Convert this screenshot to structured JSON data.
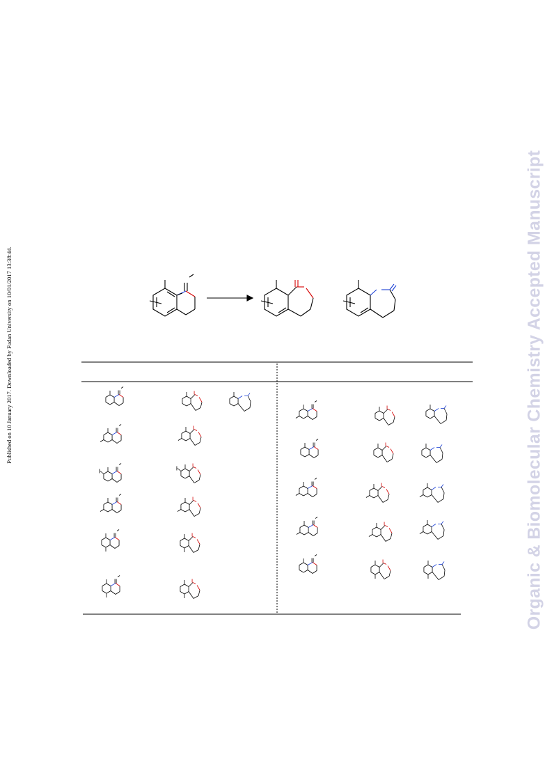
{
  "side_notice": "Published on 10 January 2017. Downloaded by Fudan University on 10/01/2017 13:38:44.",
  "watermark": "Organic & Biomolecular Chemistry Accepted Manuscript",
  "colors": {
    "bond": "#000000",
    "oxygen": "#d40000",
    "nitrogen": "#1a3fd6",
    "watermark": "#d3d3e6"
  },
  "scheme": {
    "arrow": "reaction-arrow",
    "structures": [
      "starting-material",
      "product-lactone",
      "product-lactam"
    ]
  },
  "table": {
    "left_entries": 6,
    "right_entries": 5,
    "columns_per_entry": [
      "substrate",
      "lactone-product",
      "lactam-product"
    ]
  }
}
